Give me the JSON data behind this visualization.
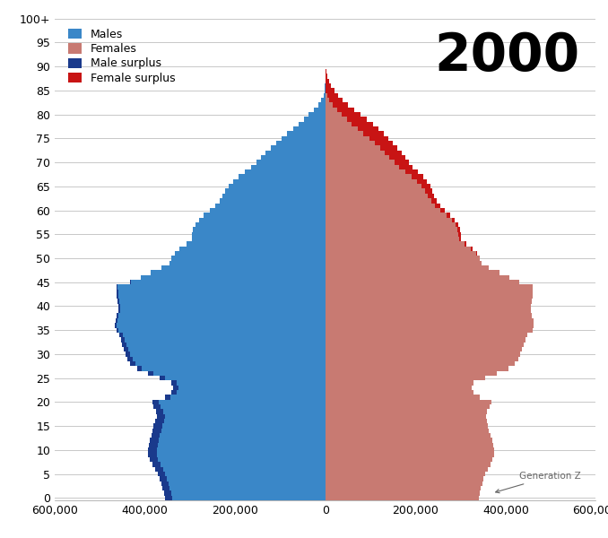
{
  "year_label": "2000",
  "males": [
    356000,
    358000,
    361000,
    364000,
    367000,
    372000,
    378000,
    384000,
    390000,
    393000,
    393000,
    392000,
    390000,
    386000,
    383000,
    382000,
    378000,
    374000,
    376000,
    381000,
    383000,
    356000,
    342000,
    338000,
    342000,
    368000,
    393000,
    418000,
    432000,
    438000,
    442000,
    446000,
    450000,
    453000,
    456000,
    463000,
    466000,
    465000,
    462000,
    459000,
    459000,
    460000,
    462000,
    462000,
    463000,
    432000,
    410000,
    387000,
    363000,
    346000,
    342000,
    334000,
    323000,
    308000,
    296000,
    295000,
    293000,
    288000,
    280000,
    269000,
    256000,
    244000,
    235000,
    228000,
    222000,
    214000,
    204000,
    192000,
    178000,
    164000,
    153000,
    142000,
    132000,
    121000,
    109000,
    97000,
    85000,
    72000,
    59000,
    48000,
    37000,
    26000,
    16000,
    9000,
    4000,
    1500,
    600,
    200,
    80,
    30,
    10,
    5,
    2,
    1,
    1,
    1,
    1,
    1,
    1,
    1,
    1
  ],
  "females": [
    340000,
    342000,
    345000,
    348000,
    351000,
    355000,
    360000,
    366000,
    371000,
    374000,
    374000,
    372000,
    370000,
    367000,
    363000,
    361000,
    358000,
    356000,
    359000,
    365000,
    369000,
    343000,
    329000,
    325000,
    329000,
    355000,
    381000,
    407000,
    421000,
    428000,
    432000,
    436000,
    440000,
    444000,
    448000,
    459000,
    462000,
    461000,
    458000,
    455000,
    455000,
    457000,
    459000,
    459000,
    460000,
    431000,
    409000,
    387000,
    363000,
    347000,
    343000,
    336000,
    326000,
    312000,
    301000,
    301000,
    299000,
    295000,
    287000,
    277000,
    266000,
    256000,
    248000,
    242000,
    237000,
    233000,
    226000,
    217000,
    205000,
    194000,
    186000,
    177000,
    169000,
    160000,
    150000,
    140000,
    130000,
    118000,
    105000,
    92000,
    79000,
    65000,
    51000,
    39000,
    29000,
    20000,
    13000,
    8000,
    4500,
    2500,
    1300,
    600,
    300,
    150,
    70,
    30,
    15,
    7,
    3,
    1,
    1
  ],
  "color_male": "#3a87c8",
  "color_female": "#c87a72",
  "color_male_surplus": "#1a3a8c",
  "color_female_surplus": "#c81414",
  "annotation_text": "Generation Z",
  "xlim": 600000,
  "xticks": [
    -600000,
    -400000,
    -200000,
    0,
    200000,
    400000,
    600000
  ],
  "xticklabels": [
    "600,000",
    "400,000",
    "200,000",
    "0",
    "200,000",
    "400,000",
    "600,000"
  ],
  "background_color": "#ffffff",
  "grid_color": "#c8c8c8"
}
